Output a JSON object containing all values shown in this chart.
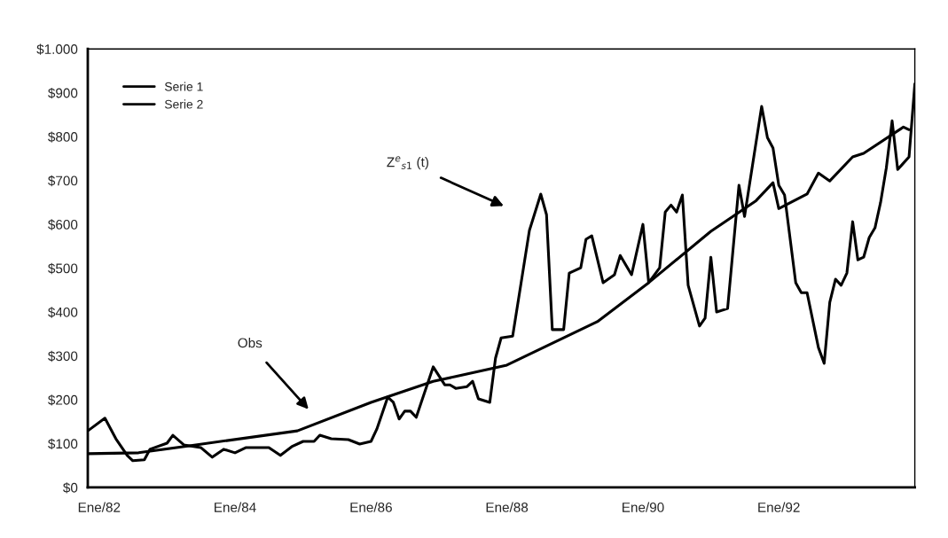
{
  "chart_data": {
    "type": "line",
    "xlim": [
      "1981-11",
      "1994-01"
    ],
    "xticks": [
      {
        "value": "1982-01",
        "label": "Ene/82"
      },
      {
        "value": "1984-01",
        "label": "Ene/84"
      },
      {
        "value": "1986-01",
        "label": "Ene/86"
      },
      {
        "value": "1988-01",
        "label": "Ene/88"
      },
      {
        "value": "1990-01",
        "label": "Ene/90"
      },
      {
        "value": "1992-01",
        "label": "Ene/92"
      }
    ],
    "ylim": [
      0,
      1000
    ],
    "yticks": [
      {
        "value": 0,
        "label": "$0"
      },
      {
        "value": 100,
        "label": "$100"
      },
      {
        "value": 200,
        "label": "$200"
      },
      {
        "value": 300,
        "label": "$300"
      },
      {
        "value": 400,
        "label": "$400"
      },
      {
        "value": 500,
        "label": "$500"
      },
      {
        "value": 600,
        "label": "$600"
      },
      {
        "value": 700,
        "label": "$700"
      },
      {
        "value": 800,
        "label": "$800"
      },
      {
        "value": 900,
        "label": "$900"
      },
      {
        "value": 1000,
        "label": "$1.000"
      }
    ],
    "grid": false,
    "legend": "top left",
    "line_style": "solid",
    "marker": "none",
    "annotations": [
      "Obs",
      "Z$^{e}$$_{s1}$ (t)"
    ],
    "series": [
      {
        "name": "Serie 1",
        "color": "#000000",
        "x": [
          "1981-11",
          "1982-02",
          "1982-04",
          "1982-06",
          "1982-07",
          "1982-09",
          "1982-10",
          "1983-01",
          "1983-02",
          "1983-04",
          "1983-07",
          "1983-09",
          "1983-11",
          "1984-01",
          "1984-03",
          "1984-07",
          "1984-09",
          "1984-11",
          "1985-01",
          "1985-03",
          "1985-04",
          "1985-06",
          "1985-09",
          "1985-11",
          "1986-01",
          "1986-02",
          "1986-04",
          "1986-05",
          "1986-06",
          "1986-07",
          "1986-08",
          "1986-09",
          "1986-12",
          "1987-02",
          "1987-03",
          "1987-04",
          "1987-06",
          "1987-07",
          "1987-08",
          "1987-10",
          "1987-11",
          "1987-12",
          "1988-02",
          "1988-05",
          "1988-07",
          "1988-08",
          "1988-09",
          "1988-11",
          "1988-12",
          "1989-02",
          "1989-03",
          "1989-04",
          "1989-06",
          "1989-08",
          "1989-09",
          "1989-11",
          "1990-01",
          "1990-02",
          "1990-04",
          "1990-05",
          "1990-06",
          "1990-07",
          "1990-08",
          "1990-09",
          "1990-11",
          "1990-12",
          "1991-01",
          "1991-02",
          "1991-04",
          "1991-06",
          "1991-07",
          "1991-10",
          "1991-11",
          "1991-12",
          "1992-01",
          "1992-02",
          "1992-04",
          "1992-05",
          "1992-06",
          "1992-08",
          "1992-09",
          "1992-10",
          "1992-11",
          "1992-12",
          "1993-01",
          "1993-02",
          "1993-03",
          "1993-04",
          "1993-05",
          "1993-06",
          "1993-07",
          "1993-08",
          "1993-09",
          "1993-10",
          "1993-12",
          "1994-01"
        ],
        "values": [
          129,
          158,
          111,
          73,
          61,
          63,
          87,
          101,
          119,
          97,
          91,
          69,
          87,
          79,
          91,
          91,
          73,
          93,
          105,
          105,
          119,
          111,
          109,
          99,
          105,
          133,
          206,
          194,
          156,
          174,
          174,
          160,
          275,
          234,
          234,
          226,
          230,
          242,
          202,
          194,
          295,
          341,
          345,
          586,
          669,
          622,
          360,
          360,
          489,
          501,
          566,
          574,
          467,
          485,
          529,
          485,
          600,
          467,
          501,
          628,
          644,
          628,
          667,
          461,
          368,
          386,
          525,
          400,
          408,
          689,
          618,
          869,
          798,
          774,
          689,
          667,
          467,
          444,
          444,
          319,
          283,
          422,
          475,
          461,
          489,
          606,
          519,
          525,
          570,
          592,
          650,
          729,
          836,
          725,
          754,
          920
        ]
      },
      {
        "name": "Serie 2",
        "color": "#000000",
        "x": [
          "1981-11",
          "1982-08",
          "1983-05",
          "1984-12",
          "1986-01",
          "1986-12",
          "1987-04",
          "1988-01",
          "1989-05",
          "1990-02",
          "1991-01",
          "1991-09",
          "1991-12",
          "1992-01",
          "1992-06",
          "1992-08",
          "1992-10",
          "1993-02",
          "1993-04",
          "1993-11",
          "1993-12"
        ],
        "values": [
          77,
          79,
          95,
          129,
          194,
          242,
          253,
          279,
          378,
          467,
          584,
          654,
          695,
          636,
          669,
          717,
          699,
          754,
          762,
          822,
          816
        ]
      }
    ]
  }
}
